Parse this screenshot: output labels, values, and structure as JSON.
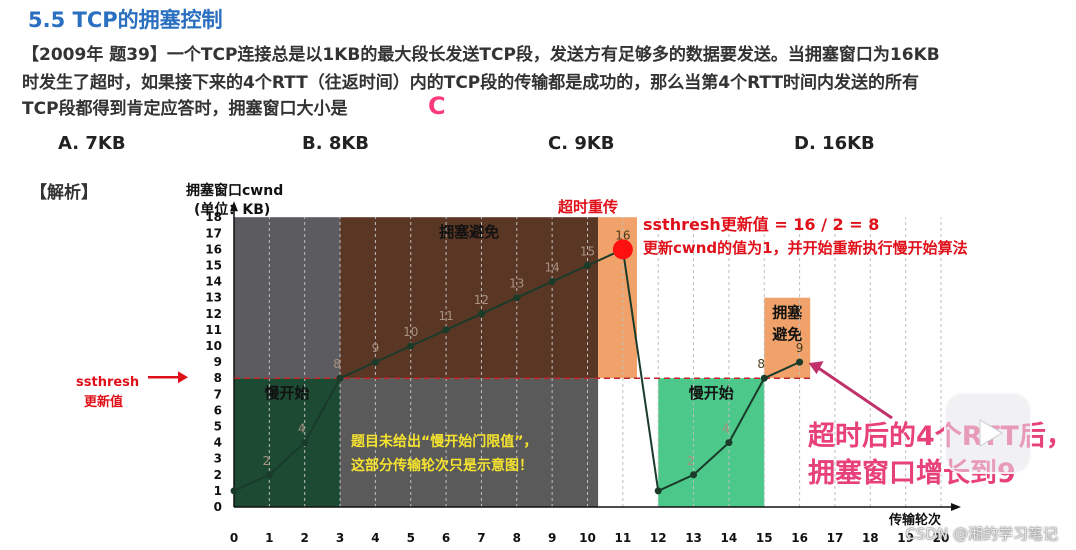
{
  "header": {
    "title": "5.5 TCP的拥塞控制",
    "question_line1": "【2009年 题39】一个TCP连接总是以1KB的最大段长发送TCP段，发送方有足够多的数据要发送。当拥塞窗口为16KB",
    "question_line2": "时发生了超时，如果接下来的4个RTT（往返时间）内的TCP段的传输都是成功的，那么当第4个RTT时间内发送的所有",
    "question_line3": "TCP段都得到肯定应答时，拥塞窗口大小是",
    "answer": "C"
  },
  "options": [
    "A. 7KB",
    "B. 8KB",
    "C. 9KB",
    "D. 16KB"
  ],
  "analysis_label": "【解析】",
  "chart_data": {
    "type": "line",
    "ylabel_line1": "拥塞窗口cwnd",
    "ylabel_line2": "(单位：KB)",
    "xlabel": "传输轮次",
    "xlim": [
      0,
      20
    ],
    "ylim": [
      0,
      18
    ],
    "x_ticks": [
      0,
      1,
      2,
      3,
      4,
      5,
      6,
      7,
      8,
      9,
      10,
      11,
      12,
      13,
      14,
      15,
      16,
      17,
      18,
      19,
      20
    ],
    "y_ticks": [
      0,
      1,
      2,
      3,
      4,
      5,
      6,
      7,
      8,
      9,
      10,
      11,
      12,
      13,
      14,
      15,
      16,
      17,
      18
    ],
    "series": [
      {
        "values": [
          [
            0,
            1
          ],
          [
            1,
            2
          ],
          [
            2,
            4
          ],
          [
            3,
            8
          ],
          [
            4,
            9
          ],
          [
            5,
            10
          ],
          [
            6,
            11
          ],
          [
            7,
            12
          ],
          [
            8,
            13
          ],
          [
            9,
            14
          ],
          [
            10,
            15
          ],
          [
            11,
            16
          ],
          [
            12,
            1
          ],
          [
            13,
            2
          ],
          [
            14,
            4
          ],
          [
            15,
            8
          ],
          [
            16,
            9
          ]
        ]
      }
    ],
    "point_labels": [
      {
        "x": 1,
        "y": 2,
        "text": "2"
      },
      {
        "x": 2,
        "y": 4,
        "text": "4"
      },
      {
        "x": 3,
        "y": 8,
        "text": "8"
      },
      {
        "x": 4,
        "y": 9,
        "text": "9"
      },
      {
        "x": 5,
        "y": 10,
        "text": "10"
      },
      {
        "x": 6,
        "y": 11,
        "text": "11"
      },
      {
        "x": 7,
        "y": 12,
        "text": "12"
      },
      {
        "x": 8,
        "y": 13,
        "text": "13"
      },
      {
        "x": 9,
        "y": 14,
        "text": "14"
      },
      {
        "x": 10,
        "y": 15,
        "text": "15"
      },
      {
        "x": 11,
        "y": 16,
        "text": "16"
      },
      {
        "x": 13,
        "y": 2,
        "text": "2"
      },
      {
        "x": 14,
        "y": 4,
        "text": "4"
      },
      {
        "x": 15,
        "y": 8,
        "text": "8"
      },
      {
        "x": 16,
        "y": 9,
        "text": "9"
      }
    ],
    "ssthresh_line": 8,
    "regions": [
      {
        "name": "slow-start-1",
        "x": [
          0,
          3
        ],
        "y": [
          0,
          8
        ],
        "color": "#1d4a33",
        "label": "慢开始"
      },
      {
        "name": "gray-note",
        "x": [
          3,
          10.3
        ],
        "y": [
          0,
          8
        ],
        "color": "#5a5a5a",
        "label": ""
      },
      {
        "name": "gray-upper",
        "x": [
          0,
          3
        ],
        "y": [
          8,
          18
        ],
        "color": "#5b5b60",
        "label": ""
      },
      {
        "name": "avoid-1",
        "x": [
          3,
          10.3
        ],
        "y": [
          8,
          18
        ],
        "color": "#5a3624",
        "label": "拥塞避免"
      },
      {
        "name": "timeout-band",
        "x": [
          10.3,
          11.4
        ],
        "y": [
          8,
          18
        ],
        "color": "#f0a26a",
        "label": ""
      },
      {
        "name": "slow-start-2",
        "x": [
          12,
          15
        ],
        "y": [
          0,
          8
        ],
        "color": "#4cc98a",
        "label": "慢开始"
      },
      {
        "name": "avoid-2",
        "x": [
          15,
          16.3
        ],
        "y": [
          8,
          13
        ],
        "color": "#f0a26a",
        "label": "拥塞\n避免"
      }
    ],
    "timeout_point": {
      "x": 11,
      "y": 16
    },
    "colors": {
      "line": "#1a3a2a",
      "threshold": "#c0242c",
      "timeout": "#ff1010",
      "arrow": "#e0101a"
    }
  },
  "annotations": {
    "timeout_label": "超时重传",
    "ssthresh_update": "ssthresh更新值 = 16 / 2 = 8",
    "cwnd_update": "更新cwnd的值为1，并开始重新执行慢开始算法",
    "ssthresh_left_1": "ssthresh",
    "ssthresh_left_2": "更新值",
    "note_line1": "题目未给出“慢开始门限值”，",
    "note_line2": "这部分传输轮次只是示意图！",
    "result_line1": "超时后的4个RTT后，",
    "result_line2": "拥塞窗口增长到9"
  },
  "watermark": "CSDN @湘的学习笔记"
}
